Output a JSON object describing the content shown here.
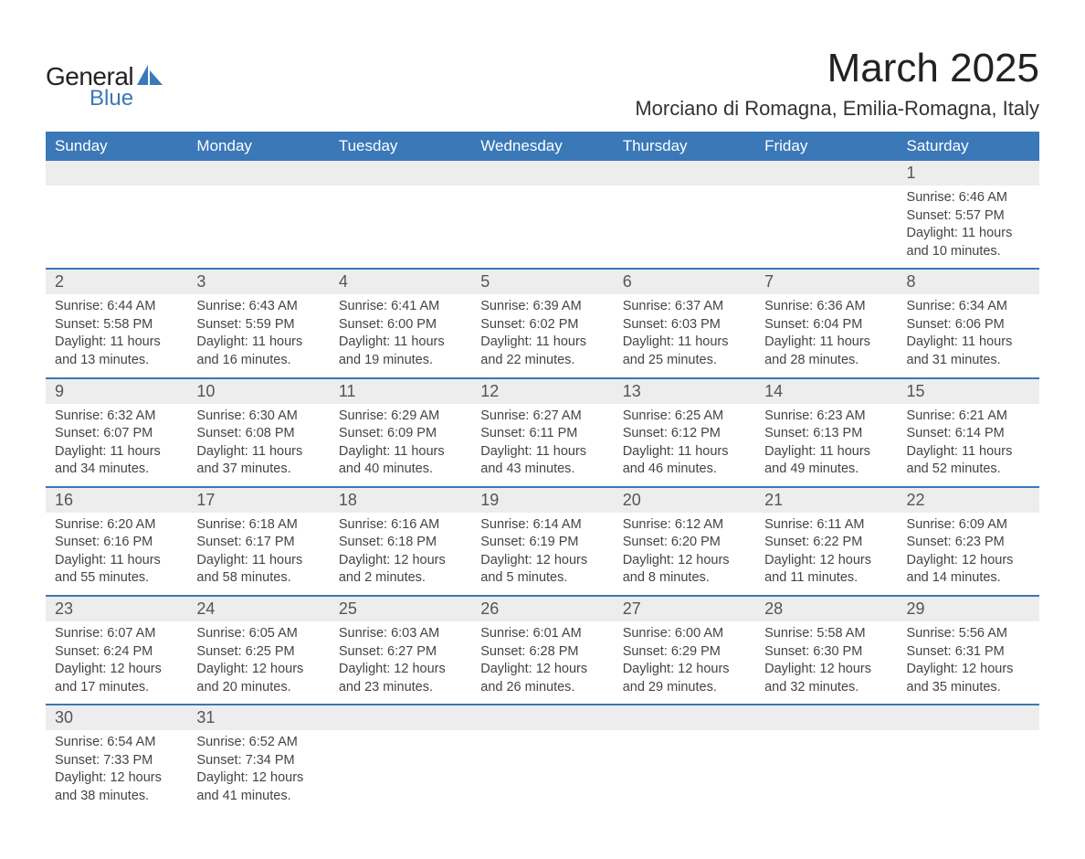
{
  "brand": {
    "name_part1": "General",
    "name_part2": "Blue",
    "accent_color": "#3a78b8",
    "text_color": "#222222"
  },
  "title": "March 2025",
  "location": "Morciano di Romagna, Emilia-Romagna, Italy",
  "colors": {
    "header_bg": "#3a78b8",
    "header_text": "#ffffff",
    "daynum_bg": "#ededed",
    "daynum_text": "#555555",
    "body_text": "#444444",
    "divider": "#3a78b8",
    "page_bg": "#ffffff"
  },
  "fonts": {
    "family": "Arial",
    "title_size_pt": 33,
    "location_size_pt": 17,
    "dow_size_pt": 13,
    "daynum_size_pt": 14,
    "detail_size_pt": 11
  },
  "days_of_week": [
    "Sunday",
    "Monday",
    "Tuesday",
    "Wednesday",
    "Thursday",
    "Friday",
    "Saturday"
  ],
  "weeks": [
    [
      {
        "day": "",
        "sunrise": "",
        "sunset": "",
        "daylight1": "",
        "daylight2": ""
      },
      {
        "day": "",
        "sunrise": "",
        "sunset": "",
        "daylight1": "",
        "daylight2": ""
      },
      {
        "day": "",
        "sunrise": "",
        "sunset": "",
        "daylight1": "",
        "daylight2": ""
      },
      {
        "day": "",
        "sunrise": "",
        "sunset": "",
        "daylight1": "",
        "daylight2": ""
      },
      {
        "day": "",
        "sunrise": "",
        "sunset": "",
        "daylight1": "",
        "daylight2": ""
      },
      {
        "day": "",
        "sunrise": "",
        "sunset": "",
        "daylight1": "",
        "daylight2": ""
      },
      {
        "day": "1",
        "sunrise": "Sunrise: 6:46 AM",
        "sunset": "Sunset: 5:57 PM",
        "daylight1": "Daylight: 11 hours",
        "daylight2": "and 10 minutes."
      }
    ],
    [
      {
        "day": "2",
        "sunrise": "Sunrise: 6:44 AM",
        "sunset": "Sunset: 5:58 PM",
        "daylight1": "Daylight: 11 hours",
        "daylight2": "and 13 minutes."
      },
      {
        "day": "3",
        "sunrise": "Sunrise: 6:43 AM",
        "sunset": "Sunset: 5:59 PM",
        "daylight1": "Daylight: 11 hours",
        "daylight2": "and 16 minutes."
      },
      {
        "day": "4",
        "sunrise": "Sunrise: 6:41 AM",
        "sunset": "Sunset: 6:00 PM",
        "daylight1": "Daylight: 11 hours",
        "daylight2": "and 19 minutes."
      },
      {
        "day": "5",
        "sunrise": "Sunrise: 6:39 AM",
        "sunset": "Sunset: 6:02 PM",
        "daylight1": "Daylight: 11 hours",
        "daylight2": "and 22 minutes."
      },
      {
        "day": "6",
        "sunrise": "Sunrise: 6:37 AM",
        "sunset": "Sunset: 6:03 PM",
        "daylight1": "Daylight: 11 hours",
        "daylight2": "and 25 minutes."
      },
      {
        "day": "7",
        "sunrise": "Sunrise: 6:36 AM",
        "sunset": "Sunset: 6:04 PM",
        "daylight1": "Daylight: 11 hours",
        "daylight2": "and 28 minutes."
      },
      {
        "day": "8",
        "sunrise": "Sunrise: 6:34 AM",
        "sunset": "Sunset: 6:06 PM",
        "daylight1": "Daylight: 11 hours",
        "daylight2": "and 31 minutes."
      }
    ],
    [
      {
        "day": "9",
        "sunrise": "Sunrise: 6:32 AM",
        "sunset": "Sunset: 6:07 PM",
        "daylight1": "Daylight: 11 hours",
        "daylight2": "and 34 minutes."
      },
      {
        "day": "10",
        "sunrise": "Sunrise: 6:30 AM",
        "sunset": "Sunset: 6:08 PM",
        "daylight1": "Daylight: 11 hours",
        "daylight2": "and 37 minutes."
      },
      {
        "day": "11",
        "sunrise": "Sunrise: 6:29 AM",
        "sunset": "Sunset: 6:09 PM",
        "daylight1": "Daylight: 11 hours",
        "daylight2": "and 40 minutes."
      },
      {
        "day": "12",
        "sunrise": "Sunrise: 6:27 AM",
        "sunset": "Sunset: 6:11 PM",
        "daylight1": "Daylight: 11 hours",
        "daylight2": "and 43 minutes."
      },
      {
        "day": "13",
        "sunrise": "Sunrise: 6:25 AM",
        "sunset": "Sunset: 6:12 PM",
        "daylight1": "Daylight: 11 hours",
        "daylight2": "and 46 minutes."
      },
      {
        "day": "14",
        "sunrise": "Sunrise: 6:23 AM",
        "sunset": "Sunset: 6:13 PM",
        "daylight1": "Daylight: 11 hours",
        "daylight2": "and 49 minutes."
      },
      {
        "day": "15",
        "sunrise": "Sunrise: 6:21 AM",
        "sunset": "Sunset: 6:14 PM",
        "daylight1": "Daylight: 11 hours",
        "daylight2": "and 52 minutes."
      }
    ],
    [
      {
        "day": "16",
        "sunrise": "Sunrise: 6:20 AM",
        "sunset": "Sunset: 6:16 PM",
        "daylight1": "Daylight: 11 hours",
        "daylight2": "and 55 minutes."
      },
      {
        "day": "17",
        "sunrise": "Sunrise: 6:18 AM",
        "sunset": "Sunset: 6:17 PM",
        "daylight1": "Daylight: 11 hours",
        "daylight2": "and 58 minutes."
      },
      {
        "day": "18",
        "sunrise": "Sunrise: 6:16 AM",
        "sunset": "Sunset: 6:18 PM",
        "daylight1": "Daylight: 12 hours",
        "daylight2": "and 2 minutes."
      },
      {
        "day": "19",
        "sunrise": "Sunrise: 6:14 AM",
        "sunset": "Sunset: 6:19 PM",
        "daylight1": "Daylight: 12 hours",
        "daylight2": "and 5 minutes."
      },
      {
        "day": "20",
        "sunrise": "Sunrise: 6:12 AM",
        "sunset": "Sunset: 6:20 PM",
        "daylight1": "Daylight: 12 hours",
        "daylight2": "and 8 minutes."
      },
      {
        "day": "21",
        "sunrise": "Sunrise: 6:11 AM",
        "sunset": "Sunset: 6:22 PM",
        "daylight1": "Daylight: 12 hours",
        "daylight2": "and 11 minutes."
      },
      {
        "day": "22",
        "sunrise": "Sunrise: 6:09 AM",
        "sunset": "Sunset: 6:23 PM",
        "daylight1": "Daylight: 12 hours",
        "daylight2": "and 14 minutes."
      }
    ],
    [
      {
        "day": "23",
        "sunrise": "Sunrise: 6:07 AM",
        "sunset": "Sunset: 6:24 PM",
        "daylight1": "Daylight: 12 hours",
        "daylight2": "and 17 minutes."
      },
      {
        "day": "24",
        "sunrise": "Sunrise: 6:05 AM",
        "sunset": "Sunset: 6:25 PM",
        "daylight1": "Daylight: 12 hours",
        "daylight2": "and 20 minutes."
      },
      {
        "day": "25",
        "sunrise": "Sunrise: 6:03 AM",
        "sunset": "Sunset: 6:27 PM",
        "daylight1": "Daylight: 12 hours",
        "daylight2": "and 23 minutes."
      },
      {
        "day": "26",
        "sunrise": "Sunrise: 6:01 AM",
        "sunset": "Sunset: 6:28 PM",
        "daylight1": "Daylight: 12 hours",
        "daylight2": "and 26 minutes."
      },
      {
        "day": "27",
        "sunrise": "Sunrise: 6:00 AM",
        "sunset": "Sunset: 6:29 PM",
        "daylight1": "Daylight: 12 hours",
        "daylight2": "and 29 minutes."
      },
      {
        "day": "28",
        "sunrise": "Sunrise: 5:58 AM",
        "sunset": "Sunset: 6:30 PM",
        "daylight1": "Daylight: 12 hours",
        "daylight2": "and 32 minutes."
      },
      {
        "day": "29",
        "sunrise": "Sunrise: 5:56 AM",
        "sunset": "Sunset: 6:31 PM",
        "daylight1": "Daylight: 12 hours",
        "daylight2": "and 35 minutes."
      }
    ],
    [
      {
        "day": "30",
        "sunrise": "Sunrise: 6:54 AM",
        "sunset": "Sunset: 7:33 PM",
        "daylight1": "Daylight: 12 hours",
        "daylight2": "and 38 minutes."
      },
      {
        "day": "31",
        "sunrise": "Sunrise: 6:52 AM",
        "sunset": "Sunset: 7:34 PM",
        "daylight1": "Daylight: 12 hours",
        "daylight2": "and 41 minutes."
      },
      {
        "day": "",
        "sunrise": "",
        "sunset": "",
        "daylight1": "",
        "daylight2": ""
      },
      {
        "day": "",
        "sunrise": "",
        "sunset": "",
        "daylight1": "",
        "daylight2": ""
      },
      {
        "day": "",
        "sunrise": "",
        "sunset": "",
        "daylight1": "",
        "daylight2": ""
      },
      {
        "day": "",
        "sunrise": "",
        "sunset": "",
        "daylight1": "",
        "daylight2": ""
      },
      {
        "day": "",
        "sunrise": "",
        "sunset": "",
        "daylight1": "",
        "daylight2": ""
      }
    ]
  ]
}
